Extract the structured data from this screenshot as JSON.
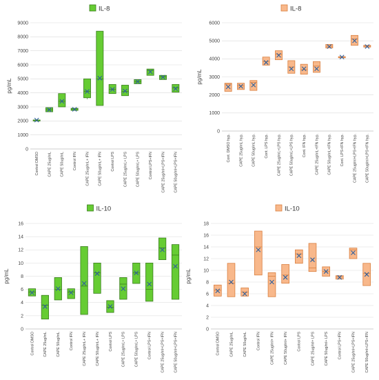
{
  "colors": {
    "green_fill": "#66cc33",
    "green_stroke": "#3a7d1e",
    "orange_fill": "#f8b88b",
    "orange_stroke": "#d97f3f",
    "marker": "#2e5f9c",
    "grid": "#d9d9d9"
  },
  "chart_data": [
    {
      "type": "box",
      "title": "IL-8",
      "legend": "IL-8",
      "legend_position": "top-center",
      "ylabel": "pg/mL",
      "ylim": [
        0,
        9000
      ],
      "yticks": [
        0,
        1000,
        2000,
        3000,
        4000,
        5000,
        6000,
        7000,
        8000,
        9000
      ],
      "grid": true,
      "color": "green",
      "categories": [
        "Control DMSO",
        "CAPE 25ug/mL",
        "CAPE 50ug/mL",
        "Control IFN",
        "CAPE 25ug/mL+ IFN",
        "CAPE 50ug/mL+ IFN",
        "Control LPS",
        "CAPE 25ug/mL+ LPS",
        "CAPE 50ug/mL+ LPS",
        "Control LPS+IFN",
        "CAPE 25ug/ml+LPS+IFN",
        "CAPE 50ug/ml+LPS+IFN"
      ],
      "boxes": [
        {
          "min": 2050,
          "q1": 2050,
          "median": 2060,
          "q3": 2070,
          "max": 2080,
          "mean": 2060
        },
        {
          "min": 2650,
          "q1": 2650,
          "median": 2800,
          "q3": 2950,
          "max": 2950,
          "mean": 2800
        },
        {
          "min": 3000,
          "q1": 3000,
          "median": 3400,
          "q3": 3950,
          "max": 3950,
          "mean": 3400
        },
        {
          "min": 2750,
          "q1": 2750,
          "median": 2850,
          "q3": 2900,
          "max": 2900,
          "mean": 2830
        },
        {
          "min": 3550,
          "q1": 3650,
          "median": 4100,
          "q3": 5000,
          "max": 5000,
          "mean": 4100
        },
        {
          "min": 3100,
          "q1": 3100,
          "median": 5000,
          "q3": 8400,
          "max": 8400,
          "mean": 5050
        },
        {
          "min": 3950,
          "q1": 3950,
          "median": 4250,
          "q3": 4600,
          "max": 4600,
          "mean": 4250
        },
        {
          "min": 3800,
          "q1": 3800,
          "median": 4100,
          "q3": 4550,
          "max": 4550,
          "mean": 4130
        },
        {
          "min": 4650,
          "q1": 4650,
          "median": 4800,
          "q3": 4950,
          "max": 4950,
          "mean": 4800
        },
        {
          "min": 5250,
          "q1": 5250,
          "median": 5600,
          "q3": 5700,
          "max": 5700,
          "mean": 5500
        },
        {
          "min": 4950,
          "q1": 4950,
          "median": 5150,
          "q3": 5250,
          "max": 5250,
          "mean": 5120
        },
        {
          "min": 4050,
          "q1": 4050,
          "median": 4350,
          "q3": 4600,
          "max": 4600,
          "mean": 4300
        }
      ]
    },
    {
      "type": "box",
      "title": "IL-8",
      "legend": "IL-8",
      "legend_position": "top-center",
      "ylabel": "pg/mL",
      "ylim": [
        0,
        6000
      ],
      "yticks": [
        0,
        1000,
        2000,
        3000,
        4000,
        5000,
        6000
      ],
      "grid": true,
      "color": "orange",
      "categories": [
        "Cont. DMSO hyp.",
        "CAPE 25ug/mL hyp.",
        "CAPE 50ug/mL hyp.",
        "Cont. LPS hyp.",
        "CAPE 25ug/mL+LPS hyp.",
        "CAPE 50ug/mL+LPS hyp.",
        "Cont. IFN hyp.",
        "CAPE 25ug/mL+IFN hyp.",
        "CAPE 50ug/mL+IFN hyp.",
        "Cont. LPS+IFN hyp.",
        "CAPE 25ug/ml+LPS+IFN hyp.",
        "CAPE 50ug/ml+LPS+IFN hyp."
      ],
      "boxes": [
        {
          "min": 2200,
          "q1": 2200,
          "median": 2600,
          "q3": 2650,
          "max": 2650,
          "mean": 2450
        },
        {
          "min": 2300,
          "q1": 2300,
          "median": 2500,
          "q3": 2650,
          "max": 2650,
          "mean": 2480
        },
        {
          "min": 2250,
          "q1": 2250,
          "median": 2700,
          "q3": 2800,
          "max": 2800,
          "mean": 2550
        },
        {
          "min": 3650,
          "q1": 3650,
          "median": 3850,
          "q3": 4100,
          "max": 4100,
          "mean": 3800
        },
        {
          "min": 3950,
          "q1": 3950,
          "median": 4250,
          "q3": 4450,
          "max": 4450,
          "mean": 4200
        },
        {
          "min": 3200,
          "q1": 3200,
          "median": 3550,
          "q3": 3900,
          "max": 3900,
          "mean": 3450
        },
        {
          "min": 3150,
          "q1": 3150,
          "median": 3400,
          "q3": 3700,
          "max": 3700,
          "mean": 3450
        },
        {
          "min": 3250,
          "q1": 3250,
          "median": 3600,
          "q3": 3850,
          "max": 3850,
          "mean": 3450
        },
        {
          "min": 4600,
          "q1": 4600,
          "median": 4700,
          "q3": 4800,
          "max": 4800,
          "mean": 4680
        },
        {
          "min": 4100,
          "q1": 4100,
          "median": 4100,
          "q3": 4120,
          "max": 4120,
          "mean": 4100
        },
        {
          "min": 4750,
          "q1": 4750,
          "median": 5100,
          "q3": 5300,
          "max": 5300,
          "mean": 5000
        },
        {
          "min": 4650,
          "q1": 4650,
          "median": 4700,
          "q3": 4750,
          "max": 4750,
          "mean": 4680
        }
      ]
    },
    {
      "type": "box",
      "title": "IL-10",
      "legend": "IL-10",
      "legend_position": "top-center",
      "ylabel": "pg/mL",
      "ylim": [
        0,
        16
      ],
      "yticks": [
        0,
        2,
        4,
        6,
        8,
        10,
        12,
        14,
        16
      ],
      "grid": true,
      "color": "green",
      "categories": [
        "Control DMSO",
        "CAPE 25ug/mL",
        "CAPE 50ug/mL",
        "Control IFN",
        "CAPE 25ug/mL+ IFN",
        "CAPE 50ug/mL+ IFN",
        "Control LPS",
        "CAPE 25ug/mL+ LPS",
        "CAPE 50ug/mL+ LPS",
        "Control LPS+IFN",
        "CAPE 25ug/ml+LPS+IFN",
        "CAPE 50ug/ml+LPS+IFN"
      ],
      "boxes": [
        {
          "min": 5.0,
          "q1": 5.0,
          "median": 5.6,
          "q3": 6.1,
          "max": 6.1,
          "mean": 5.5
        },
        {
          "min": 1.5,
          "q1": 1.5,
          "median": 3.6,
          "q3": 5.1,
          "max": 5.1,
          "mean": 3.4
        },
        {
          "min": 4.4,
          "q1": 4.4,
          "median": 6.0,
          "q3": 7.8,
          "max": 7.8,
          "mean": 6.1
        },
        {
          "min": 4.6,
          "q1": 4.6,
          "median": 5.6,
          "q3": 6.1,
          "max": 6.1,
          "mean": 5.5
        },
        {
          "min": 2.2,
          "q1": 2.2,
          "median": 6.5,
          "q3": 12.5,
          "max": 12.5,
          "mean": 6.9
        },
        {
          "min": 5.4,
          "q1": 5.4,
          "median": 8.5,
          "q3": 10.0,
          "max": 10.0,
          "mean": 8.4
        },
        {
          "min": 2.5,
          "q1": 2.5,
          "median": 3.3,
          "q3": 4.3,
          "max": 4.3,
          "mean": 3.4
        },
        {
          "min": 4.5,
          "q1": 4.5,
          "median": 6.8,
          "q3": 7.8,
          "max": 7.8,
          "mean": 6.1
        },
        {
          "min": 6.9,
          "q1": 6.9,
          "median": 8.5,
          "q3": 10.0,
          "max": 10.0,
          "mean": 8.5
        },
        {
          "min": 4.2,
          "q1": 4.2,
          "median": 6.0,
          "q3": 10.0,
          "max": 10.0,
          "mean": 6.8
        },
        {
          "min": 10.5,
          "q1": 10.5,
          "median": 12.3,
          "q3": 13.8,
          "max": 13.8,
          "mean": 12.0
        },
        {
          "min": 4.5,
          "q1": 4.5,
          "median": 11.2,
          "q3": 12.8,
          "max": 12.8,
          "mean": 9.5
        }
      ]
    },
    {
      "type": "box",
      "title": "IL-10",
      "legend": "IL-10",
      "legend_position": "top-center",
      "ylabel": "pg/mL",
      "ylim": [
        0,
        18
      ],
      "yticks": [
        0,
        2,
        4,
        6,
        8,
        10,
        12,
        14,
        16,
        18
      ],
      "grid": true,
      "color": "orange",
      "categories": [
        "Control DMSO",
        "CAPE 25ug/mL",
        "CAPE 50ug/mL",
        "Control IFN",
        "CAPE 25ug/ml+ IFN",
        "CAPE 50ug/ml+ IFN",
        "Control LPS",
        "CAPE 25ug/ml+ LPS",
        "CAPE 50ug/ml+ LPS",
        "Control LPS+IFN",
        "CAPE 25ug/ml+LPS+IFN",
        "CAPE 50ug/ml+LPS+IFN"
      ],
      "boxes": [
        {
          "min": 5.6,
          "q1": 5.6,
          "median": 6.6,
          "q3": 7.5,
          "max": 7.5,
          "mean": 6.5
        },
        {
          "min": 5.5,
          "q1": 5.5,
          "median": 7.8,
          "q3": 11.2,
          "max": 11.2,
          "mean": 8.0
        },
        {
          "min": 5.6,
          "q1": 5.6,
          "median": 6.3,
          "q3": 7.0,
          "max": 7.0,
          "mean": 6.0
        },
        {
          "min": 9.2,
          "q1": 9.2,
          "median": 14.0,
          "q3": 16.7,
          "max": 16.7,
          "mean": 13.5
        },
        {
          "min": 5.5,
          "q1": 5.5,
          "median": 9.0,
          "q3": 9.6,
          "max": 9.6,
          "mean": 8.0
        },
        {
          "min": 7.8,
          "q1": 7.8,
          "median": 9.2,
          "q3": 11.0,
          "max": 11.0,
          "mean": 8.8
        },
        {
          "min": 11.2,
          "q1": 11.2,
          "median": 12.8,
          "q3": 13.5,
          "max": 13.5,
          "mean": 12.5
        },
        {
          "min": 9.8,
          "q1": 9.8,
          "median": 10.4,
          "q3": 14.6,
          "max": 14.6,
          "mean": 11.8
        },
        {
          "min": 9.0,
          "q1": 9.0,
          "median": 9.8,
          "q3": 10.6,
          "max": 10.6,
          "mean": 9.8
        },
        {
          "min": 8.5,
          "q1": 8.5,
          "median": 8.9,
          "q3": 9.1,
          "max": 9.1,
          "mean": 8.8
        },
        {
          "min": 12.0,
          "q1": 12.0,
          "median": 13.5,
          "q3": 13.8,
          "max": 13.8,
          "mean": 13.0
        },
        {
          "min": 7.4,
          "q1": 7.4,
          "median": 9.5,
          "q3": 11.2,
          "max": 11.2,
          "mean": 9.3
        }
      ]
    }
  ]
}
